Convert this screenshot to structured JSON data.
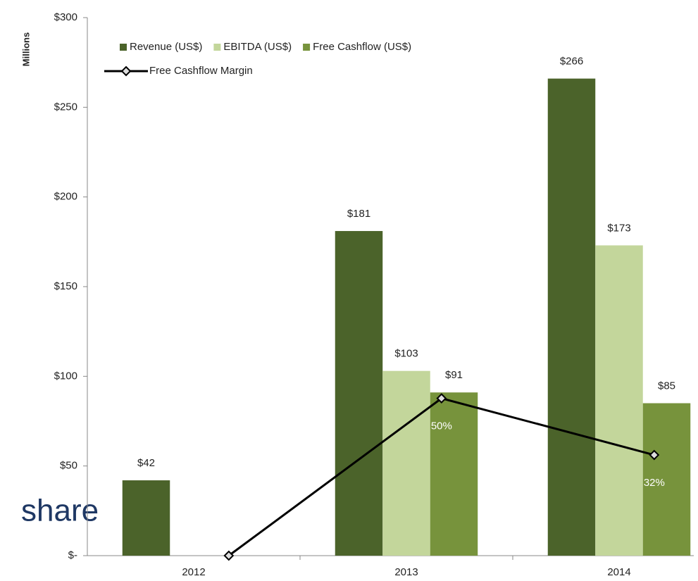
{
  "chart_data": {
    "type": "bar",
    "y_label": "Millions",
    "annotation": "share",
    "categories": [
      "2012",
      "2013",
      "2014"
    ],
    "series": [
      {
        "name": "Revenue (US$)",
        "color": "#4b632a",
        "values": [
          42,
          181,
          266
        ],
        "value_labels": [
          "$42",
          "$181",
          "$266"
        ]
      },
      {
        "name": "EBITDA (US$)",
        "color": "#c3d69b",
        "values": [
          null,
          103,
          173
        ],
        "value_labels": [
          null,
          "$103",
          "$173"
        ]
      },
      {
        "name": "Free Cashflow (US$)",
        "color": "#77933c",
        "values": [
          null,
          91,
          85
        ],
        "value_labels": [
          null,
          "$91",
          "$85"
        ]
      },
      {
        "name": "Free Cashflow Margin",
        "type": "line",
        "axis": "y2",
        "color": "#000000",
        "values": [
          0,
          50,
          32
        ],
        "value_labels": [
          null,
          "50%",
          "32%"
        ]
      }
    ],
    "ylim": [
      0,
      300
    ],
    "yticks": [
      {
        "value": 0,
        "label": "$-"
      },
      {
        "value": 50,
        "label": "$50"
      },
      {
        "value": 100,
        "label": "$100"
      },
      {
        "value": 150,
        "label": "$150"
      },
      {
        "value": 200,
        "label": "$200"
      },
      {
        "value": 250,
        "label": "$250"
      },
      {
        "value": 300,
        "label": "$300"
      }
    ],
    "y2lim": [
      0,
      171
    ],
    "legend": "top-left"
  }
}
